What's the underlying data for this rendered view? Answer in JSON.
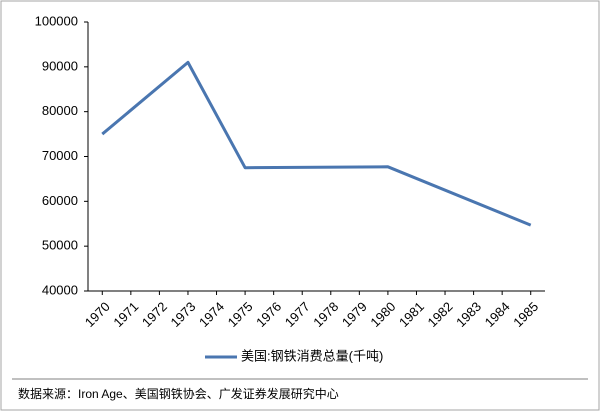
{
  "chart_data": {
    "type": "line",
    "x": [
      1970,
      1973,
      1975,
      1980,
      1985
    ],
    "series": [
      {
        "name": "美国:钢铁消费总量(千吨)",
        "color": "#4a76b0",
        "values": [
          75000,
          91000,
          67500,
          67700,
          54700
        ]
      }
    ],
    "xlim": [
      1969.5,
      1985.5
    ],
    "xticks": [
      1970,
      1971,
      1972,
      1973,
      1974,
      1975,
      1976,
      1977,
      1978,
      1979,
      1980,
      1981,
      1982,
      1983,
      1984,
      1985
    ],
    "ylim": [
      40000,
      100000
    ],
    "yticks": [
      40000,
      50000,
      60000,
      70000,
      80000,
      90000,
      100000
    ],
    "grid": false,
    "legend": "bottom",
    "source": "数据来源：Iron Age、美国钢铁协会、广发证券发展研究中心"
  }
}
